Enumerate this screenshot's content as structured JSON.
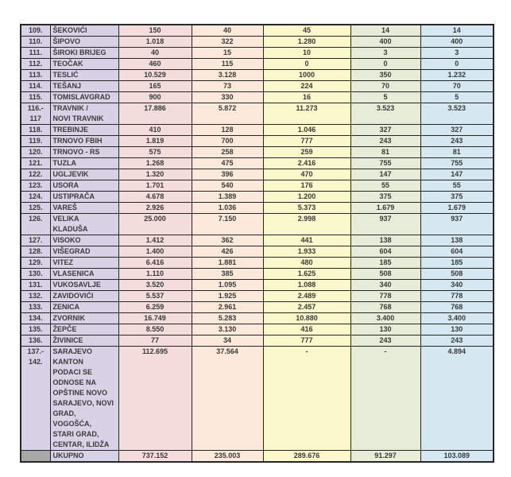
{
  "colors": {
    "lavender": "#d8d2e6",
    "rose": "#f3dcdb",
    "peach": "#fce9da",
    "yellow": "#fbf8cc",
    "sage": "#e6ecd7",
    "blue": "#d5e8f2",
    "gray": "#a8a8a8",
    "border": "#262626",
    "text": "#3a3a3a"
  },
  "table": {
    "rows": [
      {
        "num": "109.",
        "name": "ŠEKOVIĆI",
        "values": [
          "150",
          "40",
          "45",
          "14",
          "14"
        ]
      },
      {
        "num": "110.",
        "name": "ŠIPOVO",
        "values": [
          "1.018",
          "322",
          "1.280",
          "400",
          "400"
        ]
      },
      {
        "num": "111.",
        "name": "ŠIROKI BRIJEG",
        "values": [
          "40",
          "15",
          "10",
          "3",
          "3"
        ]
      },
      {
        "num": "112.",
        "name": "TEOČAK",
        "values": [
          "460",
          "115",
          "0",
          "0",
          "0"
        ]
      },
      {
        "num": "113.",
        "name": "TESLIĆ",
        "values": [
          "10.529",
          "3.128",
          "1000",
          "350",
          "1.232"
        ]
      },
      {
        "num": "114.",
        "name": "TEŠANJ",
        "values": [
          "165",
          "73",
          "224",
          "70",
          "70"
        ]
      },
      {
        "num": "115.",
        "name": "TOMISLAVGRAD",
        "values": [
          "900",
          "330",
          "16",
          "5",
          "5"
        ]
      },
      {
        "num": "116.-\n117",
        "name": "TRAVNIK /\nNOVI TRAVNIK",
        "values": [
          "17.886",
          "5.872",
          "11.273",
          "3.523",
          "3.523"
        ]
      },
      {
        "num": "118.",
        "name": "TREBINJE",
        "values": [
          "410",
          "128",
          "1.046",
          "327",
          "327"
        ]
      },
      {
        "num": "119.",
        "name": "TRNOVO FBIH",
        "values": [
          "1.819",
          "700",
          "777",
          "243",
          "243"
        ]
      },
      {
        "num": "120.",
        "name": "TRNOVO - RS",
        "values": [
          "575",
          "258",
          "259",
          "81",
          "81"
        ]
      },
      {
        "num": "121.",
        "name": "TUZLA",
        "values": [
          "1.268",
          "475",
          "2.416",
          "755",
          "755"
        ]
      },
      {
        "num": "122.",
        "name": "UGLJEVIK",
        "values": [
          "1.320",
          "396",
          "470",
          "147",
          "147"
        ]
      },
      {
        "num": "123.",
        "name": "USORA",
        "values": [
          "1.701",
          "540",
          "176",
          "55",
          "55"
        ]
      },
      {
        "num": "124.",
        "name": "USTIPRAČA",
        "values": [
          "4.678",
          "1.389",
          "1.200",
          "375",
          "375"
        ]
      },
      {
        "num": "125.",
        "name": "VAREŠ",
        "values": [
          "2.926",
          "1.036",
          "5.373",
          "1.679",
          "1.679"
        ]
      },
      {
        "num": "126.",
        "name": "VELIKA KLADUŠA",
        "values": [
          "25.000",
          "7.150",
          "2.998",
          "937",
          "937"
        ]
      },
      {
        "num": "127.",
        "name": "VISOKO",
        "values": [
          "1.412",
          "362",
          "441",
          "138",
          "138"
        ]
      },
      {
        "num": "128.",
        "name": "VIŠEGRAD",
        "values": [
          "1.400",
          "426",
          "1.933",
          "604",
          "604"
        ]
      },
      {
        "num": "129.",
        "name": "VITEZ",
        "values": [
          "6.416",
          "1.881",
          "480",
          "185",
          "185"
        ]
      },
      {
        "num": "130.",
        "name": "VLASENICA",
        "values": [
          "1.110",
          "385",
          "1.625",
          "508",
          "508"
        ]
      },
      {
        "num": "131.",
        "name": "VUKOSAVLJE",
        "values": [
          "3.520",
          "1.095",
          "1.088",
          "340",
          "340"
        ]
      },
      {
        "num": "132.",
        "name": "ZAVIDOVIĆI",
        "values": [
          "5.537",
          "1.925",
          "2.489",
          "778",
          "778"
        ]
      },
      {
        "num": "133.",
        "name": "ZENICA",
        "values": [
          "6.259",
          "2.961",
          "2.457",
          "768",
          "768"
        ]
      },
      {
        "num": "134.",
        "name": "ZVORNIK",
        "values": [
          "16.749",
          "5.283",
          "10.880",
          "3.400",
          "3.400"
        ]
      },
      {
        "num": "135.",
        "name": "ŽEPČE",
        "values": [
          "8.550",
          "3.130",
          "416",
          "130",
          "130"
        ]
      },
      {
        "num": "136.",
        "name": "ŽIVINICE",
        "values": [
          "77",
          "34",
          "777",
          "243",
          "243"
        ]
      },
      {
        "num": "137.-\n142.",
        "name": "SARAJEVO\nKANTON\nPODACI SE\nODNOSE NA\nOPŠTINE NOVO\nSARAJEVO, NOVI\nGRAD, VOGOŠĆA,\nSTARI GRAD,\nCENTAR, ILIDŽA",
        "values": [
          "112.695",
          "37.564",
          "-",
          "-",
          "4.894"
        ]
      },
      {
        "num": "",
        "name": "UKUPNO",
        "values": [
          "737.152",
          "235.003",
          "289.676",
          "91.297",
          "103.089"
        ],
        "total": true
      }
    ]
  }
}
